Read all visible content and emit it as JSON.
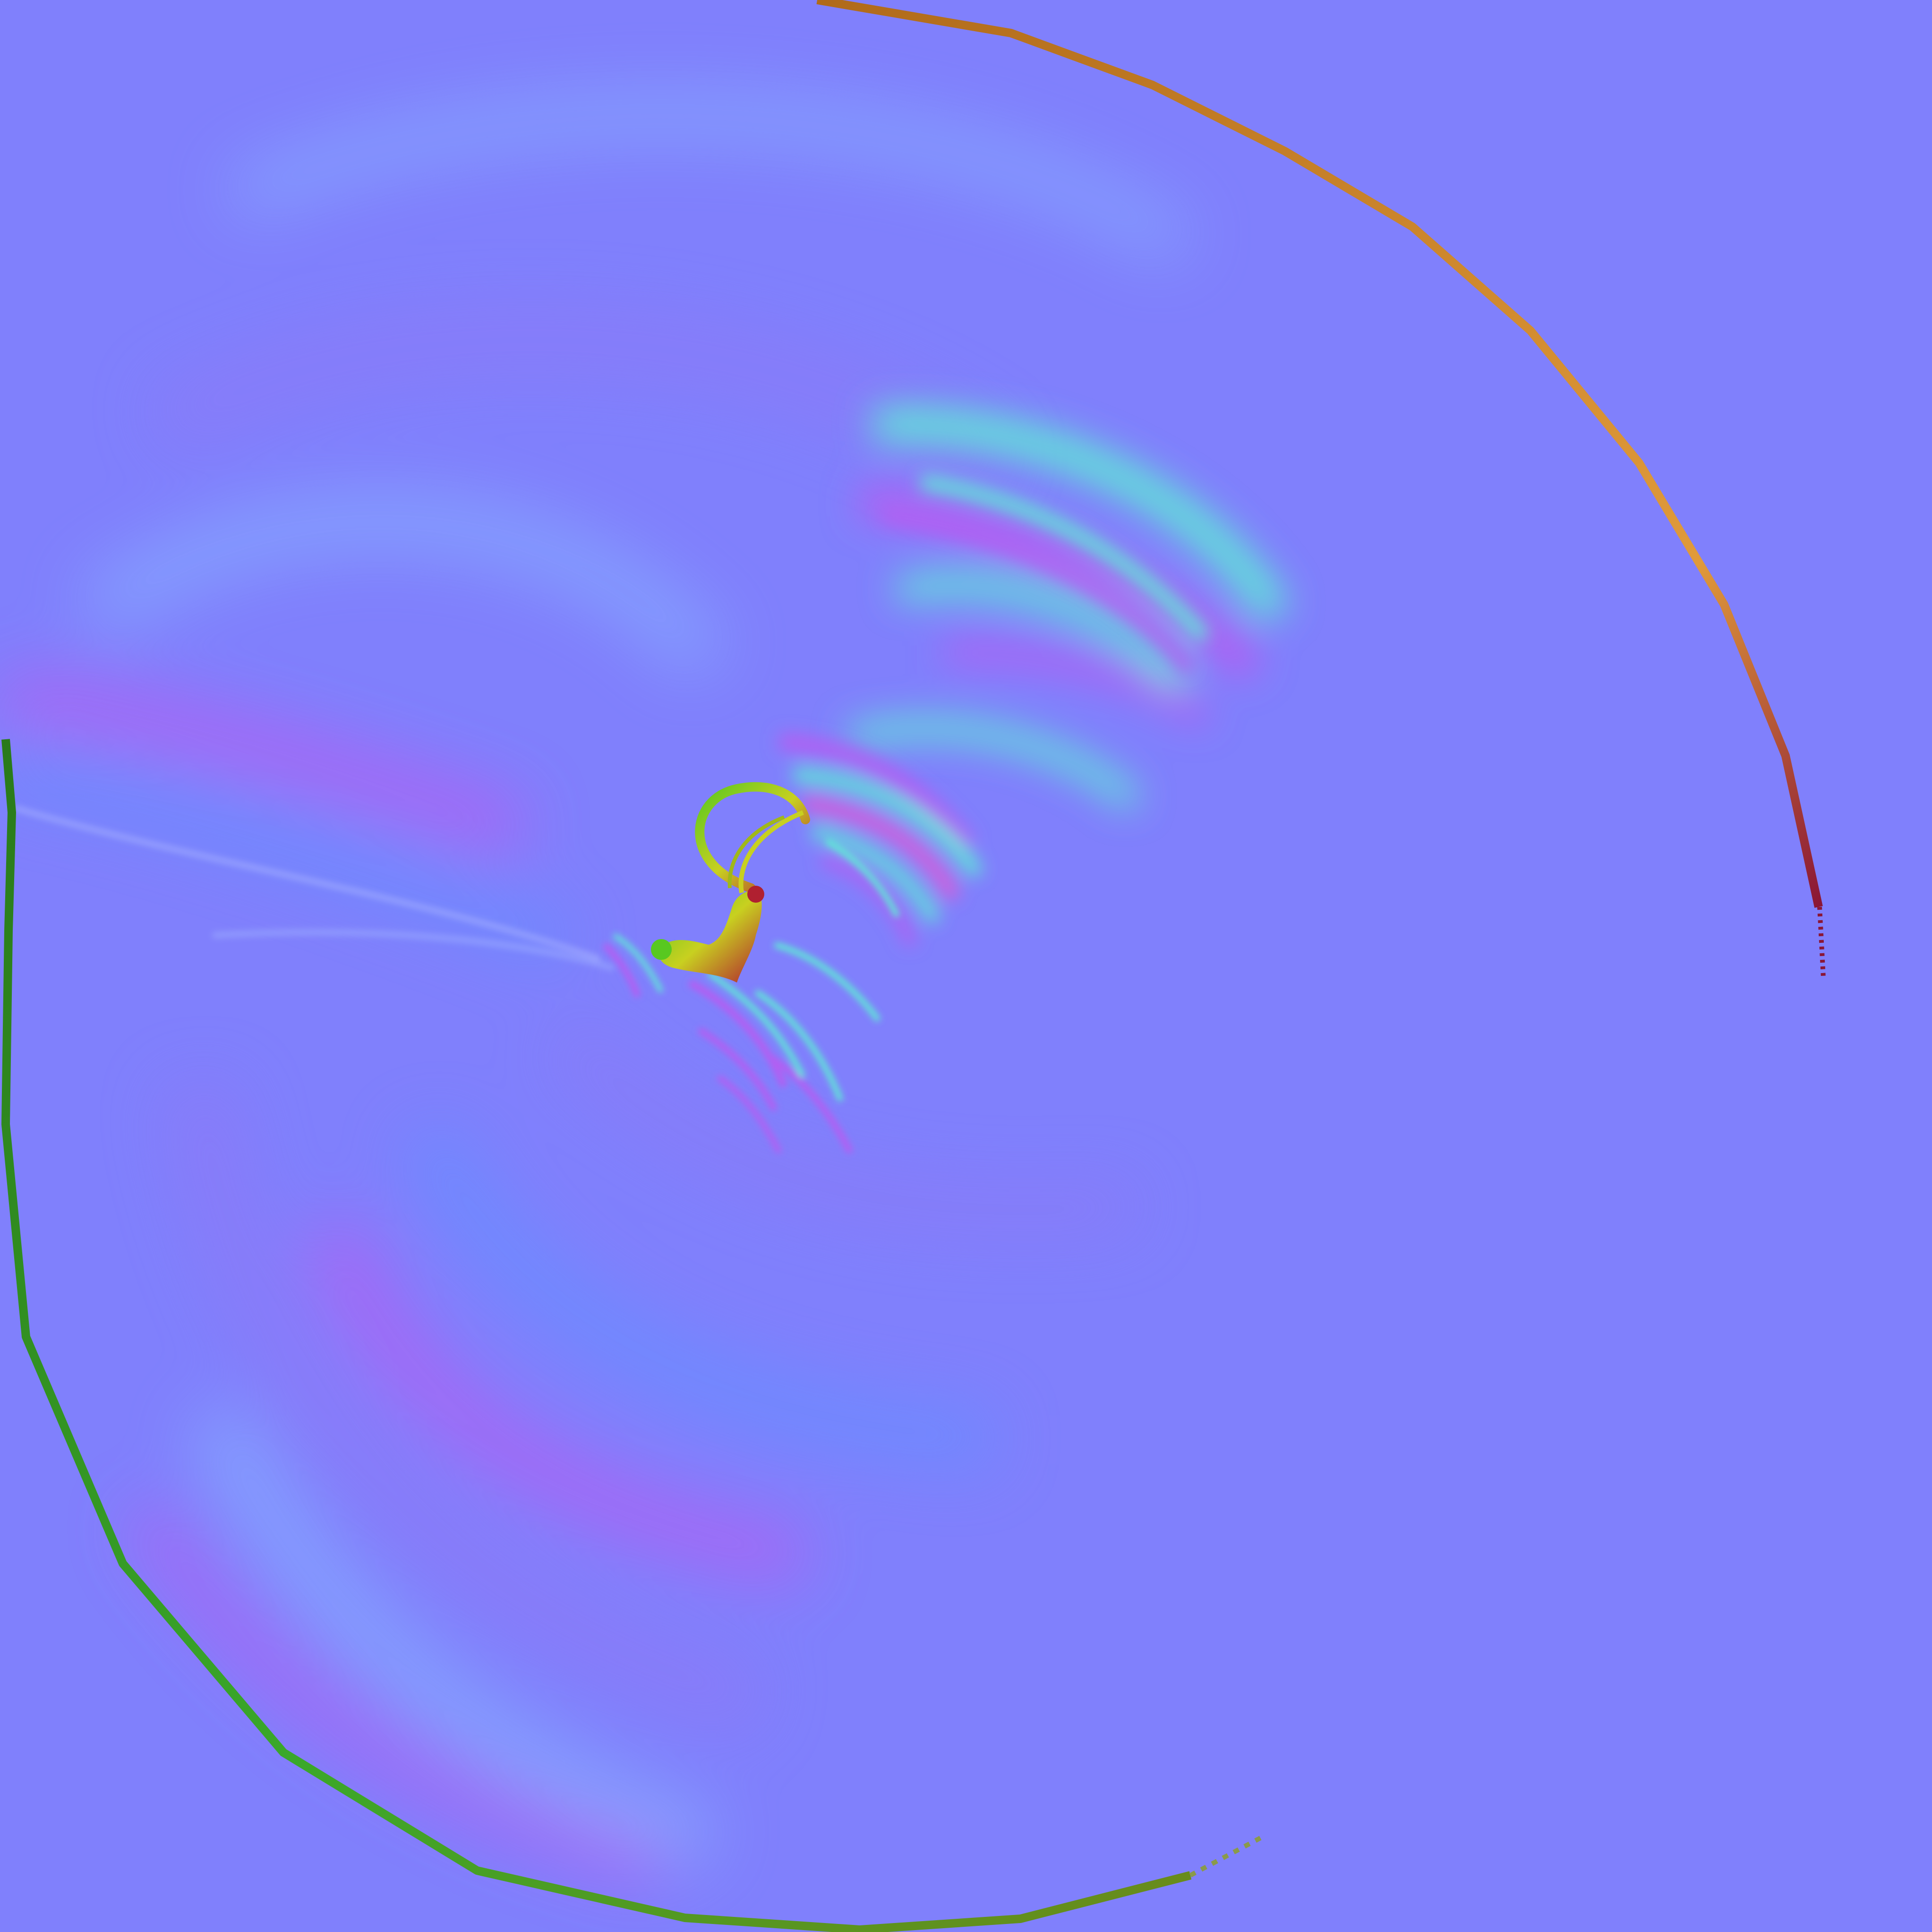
{
  "image": {
    "kind": "normal-map texture",
    "background_color": "#8080fc",
    "has_text": false
  },
  "palette": {
    "base": "#8080fc",
    "ridge_magenta": "#b25ef2",
    "ridge_pink": "#d95fd8",
    "ridge_cyan": "#5fe8d6",
    "ridge_blue": "#6a8cff",
    "soft_violet": "#8a7af8",
    "soft_sky": "#86a8ff",
    "ring_orange": "#e09a3a",
    "ring_dark_orange": "#b06a1a",
    "ring_red": "#8a1636",
    "ring_green": "#3aa82a",
    "ring_olive": "#6b8a1a",
    "ring_dark_green": "#2a7a1a",
    "core_yellow": "#c8d020",
    "core_green": "#58c820",
    "core_red": "#b02030"
  }
}
